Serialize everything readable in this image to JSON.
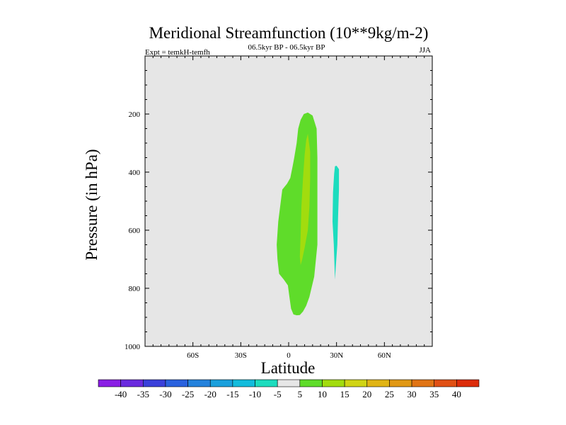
{
  "chart_data": {
    "type": "contour",
    "title": "Meridional Streamfunction (10**9kg/m-2)",
    "subtitle_left": "Expt = temkH-temfh",
    "subtitle_center": "06.5kyr BP - 06.5kyr BP",
    "subtitle_right": "JJA",
    "xlabel": "Latitude",
    "ylabel": "Pressure (in hPa)",
    "xlim": [
      -90,
      90
    ],
    "ylim": [
      1000,
      0
    ],
    "x_ticks": [
      {
        "value": -60,
        "label": "60S"
      },
      {
        "value": -30,
        "label": "30S"
      },
      {
        "value": 0,
        "label": "0"
      },
      {
        "value": 30,
        "label": "30N"
      },
      {
        "value": 60,
        "label": "60N"
      }
    ],
    "y_ticks": [
      {
        "value": 200,
        "label": "200"
      },
      {
        "value": 400,
        "label": "400"
      },
      {
        "value": 600,
        "label": "600"
      },
      {
        "value": 800,
        "label": "800"
      },
      {
        "value": 1000,
        "label": "1000"
      }
    ],
    "background_color": "#e6e6e6",
    "contour_regions": [
      {
        "level": "5 to 10",
        "color": "#5fdc2a",
        "polygon": [
          [
            12,
            195
          ],
          [
            15,
            205
          ],
          [
            17.5,
            250
          ],
          [
            18,
            350
          ],
          [
            18,
            650
          ],
          [
            16,
            760
          ],
          [
            13,
            830
          ],
          [
            11,
            860
          ],
          [
            9,
            880
          ],
          [
            7,
            892
          ],
          [
            5,
            893
          ],
          [
            3,
            890
          ],
          [
            1.5,
            870
          ],
          [
            0.5,
            830
          ],
          [
            -0.5,
            790
          ],
          [
            -3,
            770
          ],
          [
            -6,
            750
          ],
          [
            -7,
            700
          ],
          [
            -7.5,
            650
          ],
          [
            -6.5,
            570
          ],
          [
            -4,
            460
          ],
          [
            -1,
            440
          ],
          [
            1,
            420
          ],
          [
            2.5,
            380
          ],
          [
            3.5,
            350
          ],
          [
            5,
            300
          ],
          [
            6,
            250
          ],
          [
            7.5,
            220
          ],
          [
            9.5,
            200
          ]
        ]
      },
      {
        "level": "10 to 15",
        "color": "#a2dc0e",
        "polygon": [
          [
            12,
            268
          ],
          [
            13.5,
            330
          ],
          [
            13.5,
            420
          ],
          [
            13,
            520
          ],
          [
            12,
            600
          ],
          [
            10,
            660
          ],
          [
            8.5,
            700
          ],
          [
            7.5,
            720
          ],
          [
            7,
            690
          ],
          [
            7.5,
            620
          ],
          [
            8,
            520
          ],
          [
            9,
            420
          ],
          [
            10,
            340
          ],
          [
            11,
            290
          ]
        ]
      },
      {
        "level": "-10 to -5",
        "color": "#1cdcbe",
        "polygon": [
          [
            30,
            378
          ],
          [
            31.5,
            390
          ],
          [
            31.5,
            460
          ],
          [
            31,
            550
          ],
          [
            30.5,
            650
          ],
          [
            29.5,
            730
          ],
          [
            29,
            770
          ],
          [
            28.8,
            740
          ],
          [
            28.3,
            650
          ],
          [
            27.5,
            570
          ],
          [
            27.8,
            470
          ],
          [
            28.5,
            405
          ],
          [
            29,
            380
          ]
        ]
      }
    ],
    "colorbar": {
      "labels": [
        "-40",
        "-35",
        "-30",
        "-25",
        "-20",
        "-15",
        "-10",
        "-5",
        "5",
        "10",
        "15",
        "20",
        "25",
        "30",
        "35",
        "40"
      ],
      "colors": [
        "#8a1ee4",
        "#6a2ade",
        "#3a40da",
        "#2a62de",
        "#2482dc",
        "#1aa0dc",
        "#12bcdc",
        "#1cdcbe",
        "#e6e6e6",
        "#5fdc2a",
        "#a2dc0e",
        "#d0d414",
        "#e0b414",
        "#e09814",
        "#e07414",
        "#e05014",
        "#dc2c0a"
      ]
    }
  }
}
